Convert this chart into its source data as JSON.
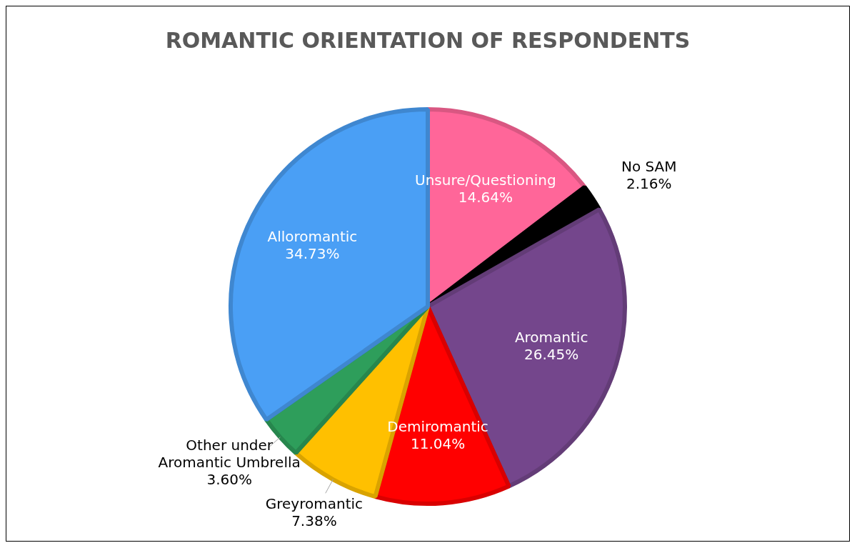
{
  "chart_data": {
    "type": "pie",
    "title": "ROMANTIC ORIENTATION OF RESPONDENTS",
    "categories": [
      "Unsure/Questioning",
      "No SAM",
      "Aromantic",
      "Demiromantic",
      "Greyromantic",
      "Other under Aromantic Umbrella",
      "Alloromantic"
    ],
    "values": [
      14.64,
      2.16,
      26.45,
      11.04,
      7.38,
      3.6,
      34.73
    ],
    "value_labels": [
      "14.64%",
      "2.16%",
      "26.45%",
      "11.04%",
      "7.38%",
      "3.60%",
      "34.73%"
    ],
    "colors": [
      "#ff6699",
      "#000000",
      "#74468c",
      "#ff0000",
      "#ffc000",
      "#2e9e5b",
      "#4a9ff5"
    ],
    "legend": false
  }
}
